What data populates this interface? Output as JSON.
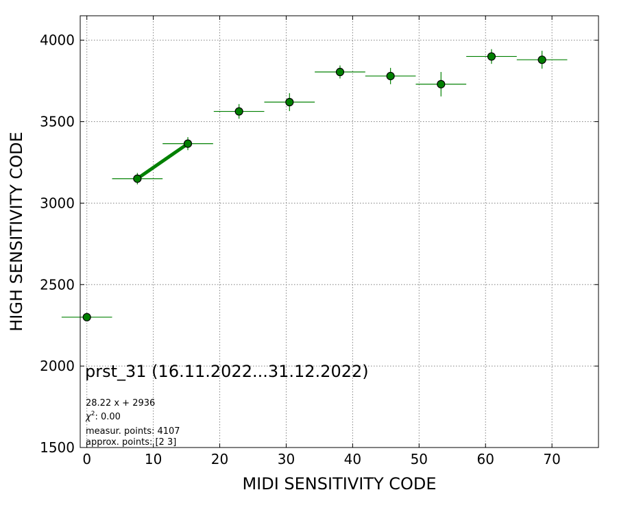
{
  "chart_data": {
    "type": "scatter",
    "xlabel": "MIDI SENSITIVITY CODE",
    "ylabel": "HIGH SENSITIVITY CODE",
    "xlim": [
      -1,
      77
    ],
    "ylim": [
      1500,
      4150
    ],
    "x_ticks": [
      0,
      10,
      20,
      30,
      40,
      50,
      60,
      70
    ],
    "y_ticks": [
      1500,
      2000,
      2500,
      3000,
      3500,
      4000
    ],
    "grid": true,
    "point_color": "#008000",
    "series": [
      {
        "points": [
          {
            "x": 0.0,
            "y": 2300,
            "xerr": 3.8,
            "yerr": 0
          },
          {
            "x": 7.6,
            "y": 3150,
            "xerr": 3.8,
            "yerr": 35
          },
          {
            "x": 15.2,
            "y": 3365,
            "xerr": 3.8,
            "yerr": 40
          },
          {
            "x": 22.9,
            "y": 3563,
            "xerr": 3.8,
            "yerr": 45
          },
          {
            "x": 30.5,
            "y": 3620,
            "xerr": 3.8,
            "yerr": 55
          },
          {
            "x": 38.1,
            "y": 3805,
            "xerr": 3.8,
            "yerr": 40
          },
          {
            "x": 45.7,
            "y": 3780,
            "xerr": 3.8,
            "yerr": 50
          },
          {
            "x": 53.3,
            "y": 3730,
            "xerr": 3.8,
            "yerr": 75
          },
          {
            "x": 60.9,
            "y": 3900,
            "xerr": 3.8,
            "yerr": 45
          },
          {
            "x": 68.5,
            "y": 3880,
            "xerr": 3.8,
            "yerr": 55
          }
        ]
      }
    ],
    "fit_line": {
      "x_start": 7.6,
      "x_end": 15.2,
      "slope": 28.22,
      "intercept": 2936
    },
    "annotations": {
      "title": "prst_31 (16.11.2022...31.12.2022)",
      "fit_text": "28.22 x + 2936",
      "chi2_label": "χ",
      "chi2_sup": "2",
      "chi2_value": ": 0.00",
      "measur_text": "measur. points: 4107",
      "approx_text": "approx. points: [2 3]"
    }
  }
}
